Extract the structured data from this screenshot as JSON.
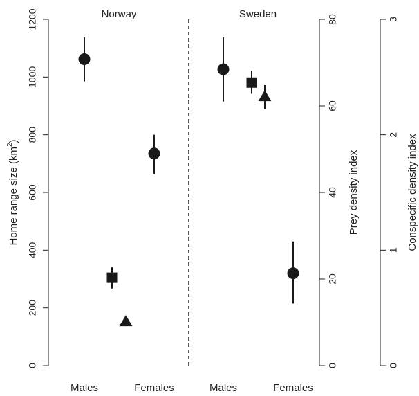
{
  "chart_data": {
    "type": "scatter",
    "panels": [
      "Norway",
      "Sweden"
    ],
    "groups": [
      "Males",
      "Females"
    ],
    "axes": {
      "left": {
        "label_main": "Home range size (km",
        "label_sup": "2",
        "label_end": ")",
        "ylim": [
          0,
          1200
        ],
        "ticks": [
          0,
          200,
          400,
          600,
          800,
          1000,
          1200
        ]
      },
      "right1": {
        "label": "Prey density index",
        "ylim": [
          0,
          80
        ],
        "ticks": [
          0,
          20,
          40,
          60,
          80
        ]
      },
      "right2": {
        "label": "Conspecific density index",
        "ylim": [
          0,
          3
        ],
        "ticks": [
          0,
          1,
          2,
          3
        ]
      }
    },
    "series": [
      {
        "kind": "home_range",
        "marker": "circle",
        "axis": "left",
        "points": [
          {
            "panel": "Norway",
            "group": "Males",
            "y": 1062,
            "lo": 985,
            "hi": 1140
          },
          {
            "panel": "Norway",
            "group": "Females",
            "y": 735,
            "lo": 665,
            "hi": 800
          },
          {
            "panel": "Sweden",
            "group": "Males",
            "y": 1027,
            "lo": 915,
            "hi": 1138
          },
          {
            "panel": "Sweden",
            "group": "Females",
            "y": 320,
            "lo": 215,
            "hi": 430
          }
        ]
      },
      {
        "kind": "prey",
        "marker": "square",
        "axis": "right1",
        "points": [
          {
            "panel": "Norway",
            "y": 20.3,
            "lo": 17.8,
            "hi": 22.7
          },
          {
            "panel": "Sweden",
            "y": 65.4,
            "lo": 62.8,
            "hi": 68.1
          }
        ]
      },
      {
        "kind": "conspecific",
        "marker": "triangle",
        "axis": "right2",
        "points": [
          {
            "panel": "Norway",
            "y": 0.38,
            "lo": null,
            "hi": null
          },
          {
            "panel": "Sweden",
            "y": 2.33,
            "lo": 2.22,
            "hi": 2.43
          }
        ]
      }
    ],
    "colors": {
      "marker": "#1a1a1a",
      "axis": "#222222"
    }
  }
}
